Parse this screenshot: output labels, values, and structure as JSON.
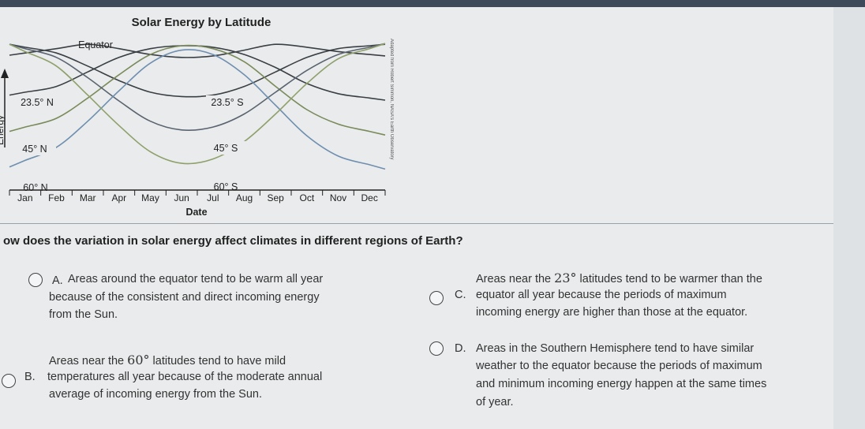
{
  "chart_data": {
    "type": "line",
    "title": "Solar Energy by Latitude",
    "xlabel": "Date",
    "ylabel": "Energy",
    "categories": [
      "Jan",
      "Feb",
      "Mar",
      "Apr",
      "May",
      "Jun",
      "Jul",
      "Aug",
      "Sep",
      "Oct",
      "Nov",
      "Dec"
    ],
    "series": [
      {
        "name": "Equator",
        "values": [
          0.89,
          0.92,
          0.95,
          0.92,
          0.88,
          0.86,
          0.87,
          0.91,
          0.95,
          0.93,
          0.9,
          0.88
        ],
        "color": "#3a3f44"
      },
      {
        "name": "23.5° N",
        "values": [
          0.62,
          0.66,
          0.76,
          0.86,
          0.92,
          0.94,
          0.93,
          0.88,
          0.79,
          0.68,
          0.61,
          0.58
        ],
        "color": "#3a3f44"
      },
      {
        "name": "23.5° S",
        "values": [
          0.93,
          0.89,
          0.8,
          0.7,
          0.62,
          0.59,
          0.6,
          0.66,
          0.76,
          0.86,
          0.92,
          0.94
        ],
        "color": "#3a3f44"
      },
      {
        "name": "45° N",
        "values": [
          0.38,
          0.44,
          0.58,
          0.74,
          0.88,
          0.94,
          0.92,
          0.83,
          0.66,
          0.5,
          0.4,
          0.35
        ],
        "color": "#7a8a5a"
      },
      {
        "name": "45° S",
        "values": [
          0.92,
          0.86,
          0.72,
          0.56,
          0.42,
          0.36,
          0.38,
          0.47,
          0.62,
          0.77,
          0.88,
          0.93
        ],
        "color": "#5a6470"
      },
      {
        "name": "60° N",
        "values": [
          0.15,
          0.24,
          0.42,
          0.63,
          0.82,
          0.91,
          0.88,
          0.74,
          0.53,
          0.32,
          0.18,
          0.12
        ],
        "color": "#6f8fb0"
      },
      {
        "name": "60° S",
        "values": [
          0.9,
          0.8,
          0.6,
          0.39,
          0.21,
          0.13,
          0.16,
          0.28,
          0.47,
          0.68,
          0.85,
          0.92
        ],
        "color": "#8fa06a"
      }
    ],
    "labels": {
      "equator": "Equator",
      "n23": "23.5° N",
      "s23": "23.5° S",
      "n45": "45° N",
      "s45": "45° S",
      "n60": "60° N",
      "s60": "60° S"
    },
    "grid": false,
    "legend": "none",
    "ylim": [
      0,
      1
    ]
  },
  "watermark": "Adapted from Robert Simmon, NASA's Earth Observatory",
  "question": "ow does the variation in solar energy affect climates in different regions of Earth?",
  "options": {
    "A": {
      "letter": "A.",
      "line1": "Areas around the equator tend to be warm all year",
      "line2": "because of the consistent and direct incoming energy",
      "line3": "from the Sun."
    },
    "B": {
      "letter": "B.",
      "line1_pre": "Areas near the ",
      "line1_num": "60°",
      "line1_post": " latitudes tend to have mild",
      "line2": "temperatures all year because of the moderate annual",
      "line3": "average of incoming energy from the Sun."
    },
    "C": {
      "letter": "C.",
      "line1_pre": "Areas near the ",
      "line1_num": "23°",
      "line1_post": " latitudes tend to be warmer than the",
      "line2": "equator all year because the periods of maximum",
      "line3": "incoming energy are higher than those at the equator."
    },
    "D": {
      "letter": "D.",
      "line1": "Areas in the Southern Hemisphere tend to have similar",
      "line2": "weather to the equator because the periods of maximum",
      "line3": "and minimum incoming energy happen at the same times",
      "line4": "of year."
    }
  }
}
